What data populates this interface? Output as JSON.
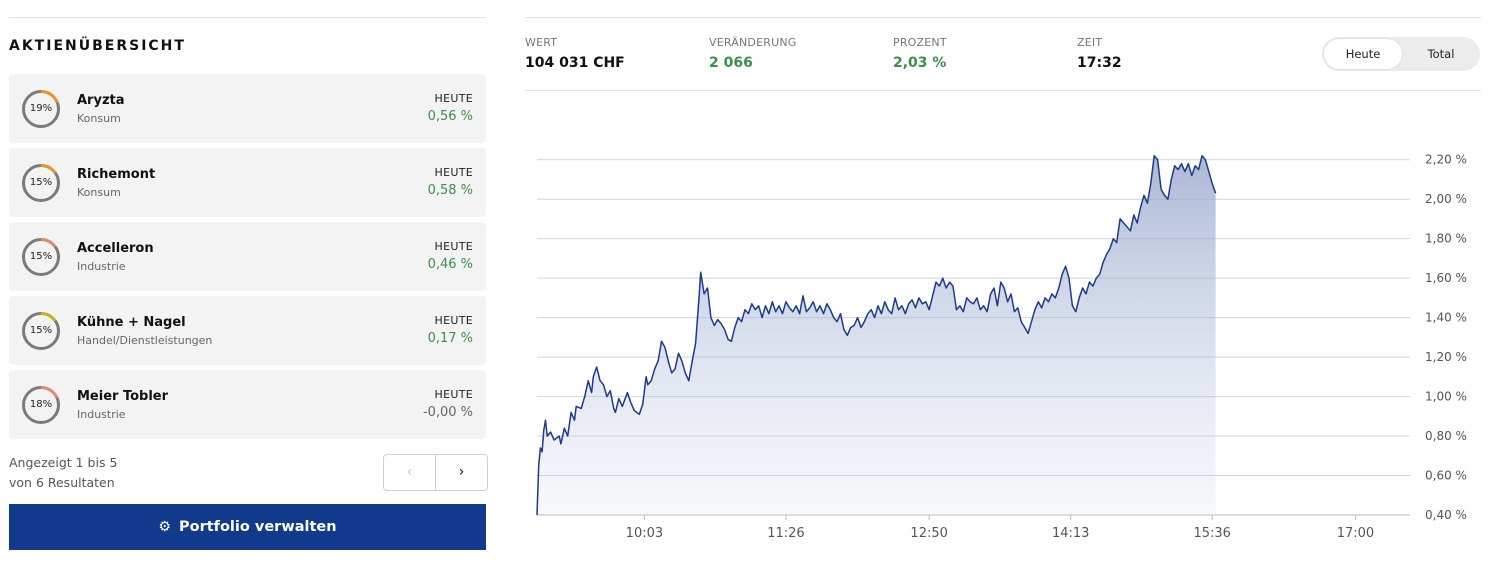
{
  "overview": {
    "title": "AKTIENÜBERSICHT",
    "stocks": [
      {
        "name": "Aryzta",
        "sector": "Konsum",
        "weight": "19%",
        "weight_value": 19,
        "ring_color": "#f0922b",
        "label": "HEUTE",
        "change": "0,56 %",
        "trend": "pos"
      },
      {
        "name": "Richemont",
        "sector": "Konsum",
        "weight": "15%",
        "weight_value": 15,
        "ring_color": "#f0922b",
        "label": "HEUTE",
        "change": "0,58 %",
        "trend": "pos"
      },
      {
        "name": "Accelleron",
        "sector": "Industrie",
        "weight": "15%",
        "weight_value": 15,
        "ring_color": "#e38b6d",
        "label": "HEUTE",
        "change": "0,46 %",
        "trend": "pos"
      },
      {
        "name": "Kühne + Nagel",
        "sector": "Handel/Dienstleistungen",
        "weight": "15%",
        "weight_value": 15,
        "ring_color": "#c9b420",
        "label": "HEUTE",
        "change": "0,17 %",
        "trend": "pos"
      },
      {
        "name": "Meier Tobler",
        "sector": "Industrie",
        "weight": "18%",
        "weight_value": 18,
        "ring_color": "#e38b6d",
        "label": "HEUTE",
        "change": "-0,00 %",
        "trend": "neutral"
      }
    ],
    "pager": {
      "line1": "Angezeigt 1 bis 5",
      "line2": "von 6 Resultaten",
      "prev_icon": "chevron-left-icon",
      "next_icon": "chevron-right-icon"
    },
    "action_button": {
      "label": "Portfolio verwalten",
      "icon": "gear-icon"
    }
  },
  "stats": {
    "wert": {
      "label": "WERT",
      "value": "104 031 CHF"
    },
    "veraenderung": {
      "label": "VERÄNDERUNG",
      "value": "2 066",
      "color": "#3a8f4c"
    },
    "prozent": {
      "label": "PROZENT",
      "value": "2,03 %",
      "color": "#3a8f4c"
    },
    "zeit": {
      "label": "ZEIT",
      "value": "17:32"
    }
  },
  "toggle": {
    "options": [
      "Heute",
      "Total"
    ],
    "selected": "Heute"
  },
  "colors": {
    "line": "#1e3a8a",
    "button": "#123a8c",
    "positive": "#3a8f4c"
  },
  "chart_data": {
    "type": "area",
    "x_ticks": [
      "10:03",
      "11:26",
      "12:50",
      "14:13",
      "15:36",
      "17:00"
    ],
    "y_ticks": [
      "0,40 %",
      "0,60 %",
      "0,80 %",
      "1,00 %",
      "1,20 %",
      "1,40 %",
      "1,60 %",
      "1,80 %",
      "2,00 %",
      "2,20 %"
    ],
    "ylim": [
      0.4,
      2.3
    ],
    "xlim_minutes": [
      540,
      1052
    ],
    "grid": "horizontal",
    "y_axis_position": "right",
    "series": [
      {
        "points": [
          [
            540,
            0.4
          ],
          [
            541,
            0.65
          ],
          [
            542,
            0.74
          ],
          [
            543,
            0.72
          ],
          [
            544,
            0.83
          ],
          [
            545,
            0.88
          ],
          [
            546,
            0.8
          ],
          [
            548,
            0.82
          ],
          [
            550,
            0.78
          ],
          [
            553,
            0.8
          ],
          [
            554,
            0.76
          ],
          [
            556,
            0.84
          ],
          [
            558,
            0.8
          ],
          [
            560,
            0.92
          ],
          [
            562,
            0.88
          ],
          [
            563,
            0.95
          ],
          [
            566,
            0.94
          ],
          [
            568,
            1.0
          ],
          [
            570,
            1.08
          ],
          [
            572,
            1.02
          ],
          [
            573,
            1.1
          ],
          [
            575,
            1.15
          ],
          [
            577,
            1.08
          ],
          [
            579,
            1.06
          ],
          [
            581,
            1.0
          ],
          [
            583,
            1.03
          ],
          [
            585,
            0.94
          ],
          [
            586,
            0.92
          ],
          [
            588,
            0.99
          ],
          [
            590,
            0.95
          ],
          [
            593,
            1.02
          ],
          [
            595,
            0.97
          ],
          [
            597,
            0.93
          ],
          [
            600,
            0.91
          ],
          [
            602,
            0.96
          ],
          [
            604,
            1.1
          ],
          [
            605,
            1.06
          ],
          [
            607,
            1.08
          ],
          [
            609,
            1.14
          ],
          [
            611,
            1.18
          ],
          [
            613,
            1.28
          ],
          [
            615,
            1.25
          ],
          [
            617,
            1.18
          ],
          [
            619,
            1.12
          ],
          [
            621,
            1.14
          ],
          [
            623,
            1.22
          ],
          [
            625,
            1.18
          ],
          [
            627,
            1.12
          ],
          [
            629,
            1.08
          ],
          [
            631,
            1.18
          ],
          [
            633,
            1.27
          ],
          [
            635,
            1.5
          ],
          [
            636,
            1.63
          ],
          [
            638,
            1.52
          ],
          [
            640,
            1.55
          ],
          [
            642,
            1.4
          ],
          [
            644,
            1.36
          ],
          [
            646,
            1.39
          ],
          [
            648,
            1.37
          ],
          [
            650,
            1.34
          ],
          [
            652,
            1.29
          ],
          [
            654,
            1.28
          ],
          [
            656,
            1.35
          ],
          [
            658,
            1.4
          ],
          [
            660,
            1.38
          ],
          [
            662,
            1.44
          ],
          [
            664,
            1.42
          ],
          [
            666,
            1.47
          ],
          [
            668,
            1.44
          ],
          [
            670,
            1.46
          ],
          [
            672,
            1.4
          ],
          [
            674,
            1.46
          ],
          [
            676,
            1.42
          ],
          [
            678,
            1.48
          ],
          [
            680,
            1.43
          ],
          [
            682,
            1.46
          ],
          [
            684,
            1.42
          ],
          [
            686,
            1.48
          ],
          [
            688,
            1.45
          ],
          [
            690,
            1.43
          ],
          [
            692,
            1.46
          ],
          [
            694,
            1.42
          ],
          [
            696,
            1.51
          ],
          [
            698,
            1.43
          ],
          [
            700,
            1.45
          ],
          [
            702,
            1.48
          ],
          [
            704,
            1.43
          ],
          [
            706,
            1.46
          ],
          [
            708,
            1.42
          ],
          [
            710,
            1.47
          ],
          [
            712,
            1.44
          ],
          [
            714,
            1.4
          ],
          [
            716,
            1.38
          ],
          [
            718,
            1.42
          ],
          [
            720,
            1.34
          ],
          [
            722,
            1.31
          ],
          [
            724,
            1.35
          ],
          [
            726,
            1.36
          ],
          [
            728,
            1.4
          ],
          [
            730,
            1.35
          ],
          [
            732,
            1.38
          ],
          [
            734,
            1.42
          ],
          [
            736,
            1.44
          ],
          [
            738,
            1.4
          ],
          [
            740,
            1.46
          ],
          [
            742,
            1.42
          ],
          [
            744,
            1.48
          ],
          [
            746,
            1.44
          ],
          [
            748,
            1.42
          ],
          [
            750,
            1.5
          ],
          [
            752,
            1.44
          ],
          [
            754,
            1.46
          ],
          [
            756,
            1.42
          ],
          [
            758,
            1.47
          ],
          [
            760,
            1.49
          ],
          [
            762,
            1.45
          ],
          [
            764,
            1.5
          ],
          [
            766,
            1.47
          ],
          [
            768,
            1.48
          ],
          [
            770,
            1.44
          ],
          [
            772,
            1.51
          ],
          [
            774,
            1.58
          ],
          [
            776,
            1.56
          ],
          [
            778,
            1.6
          ],
          [
            780,
            1.55
          ],
          [
            782,
            1.58
          ],
          [
            784,
            1.56
          ],
          [
            786,
            1.44
          ],
          [
            788,
            1.46
          ],
          [
            790,
            1.43
          ],
          [
            792,
            1.5
          ],
          [
            794,
            1.48
          ],
          [
            796,
            1.47
          ],
          [
            798,
            1.5
          ],
          [
            800,
            1.44
          ],
          [
            802,
            1.46
          ],
          [
            804,
            1.43
          ],
          [
            806,
            1.52
          ],
          [
            808,
            1.55
          ],
          [
            810,
            1.46
          ],
          [
            812,
            1.58
          ],
          [
            814,
            1.55
          ],
          [
            816,
            1.48
          ],
          [
            818,
            1.52
          ],
          [
            820,
            1.43
          ],
          [
            822,
            1.45
          ],
          [
            824,
            1.38
          ],
          [
            826,
            1.35
          ],
          [
            828,
            1.32
          ],
          [
            830,
            1.38
          ],
          [
            832,
            1.44
          ],
          [
            834,
            1.48
          ],
          [
            836,
            1.45
          ],
          [
            838,
            1.5
          ],
          [
            840,
            1.48
          ],
          [
            842,
            1.52
          ],
          [
            844,
            1.5
          ],
          [
            846,
            1.55
          ],
          [
            848,
            1.62
          ],
          [
            850,
            1.66
          ],
          [
            852,
            1.6
          ],
          [
            854,
            1.46
          ],
          [
            856,
            1.43
          ],
          [
            858,
            1.5
          ],
          [
            860,
            1.55
          ],
          [
            862,
            1.52
          ],
          [
            864,
            1.58
          ],
          [
            866,
            1.56
          ],
          [
            868,
            1.6
          ],
          [
            870,
            1.62
          ],
          [
            872,
            1.68
          ],
          [
            874,
            1.72
          ],
          [
            876,
            1.75
          ],
          [
            878,
            1.8
          ],
          [
            880,
            1.78
          ],
          [
            882,
            1.9
          ],
          [
            884,
            1.88
          ],
          [
            886,
            1.86
          ],
          [
            888,
            1.84
          ],
          [
            890,
            1.92
          ],
          [
            892,
            1.88
          ],
          [
            894,
            1.96
          ],
          [
            896,
            2.02
          ],
          [
            898,
            1.98
          ],
          [
            900,
            2.08
          ],
          [
            902,
            2.22
          ],
          [
            904,
            2.2
          ],
          [
            906,
            2.05
          ],
          [
            908,
            2.02
          ],
          [
            910,
            2.0
          ],
          [
            912,
            2.1
          ],
          [
            914,
            2.17
          ],
          [
            916,
            2.15
          ],
          [
            918,
            2.18
          ],
          [
            920,
            2.14
          ],
          [
            922,
            2.18
          ],
          [
            924,
            2.12
          ],
          [
            926,
            2.17
          ],
          [
            928,
            2.15
          ],
          [
            930,
            2.22
          ],
          [
            932,
            2.2
          ],
          [
            934,
            2.14
          ],
          [
            936,
            2.08
          ],
          [
            938,
            2.03
          ]
        ]
      }
    ]
  }
}
